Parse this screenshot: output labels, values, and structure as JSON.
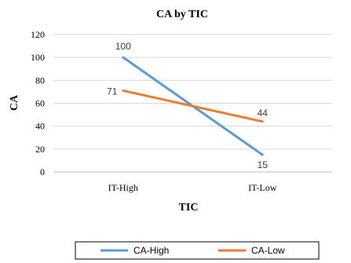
{
  "chart_data": {
    "type": "line",
    "title": "CA by TIC",
    "xlabel": "TIC",
    "ylabel": "CA",
    "categories": [
      "IT-High",
      "IT-Low"
    ],
    "ylim": [
      0,
      120
    ],
    "yticks": [
      "0",
      "20",
      "40",
      "60",
      "80",
      "100",
      "120"
    ],
    "grid": true,
    "legend_position": "bottom",
    "series": [
      {
        "name": "CA-High",
        "values": [
          100,
          15
        ],
        "labels": [
          "100",
          "15"
        ],
        "color": "#5b9bd5"
      },
      {
        "name": "CA-Low",
        "values": [
          71,
          44
        ],
        "labels": [
          "71",
          "44"
        ],
        "color": "#ed7d31"
      }
    ]
  }
}
